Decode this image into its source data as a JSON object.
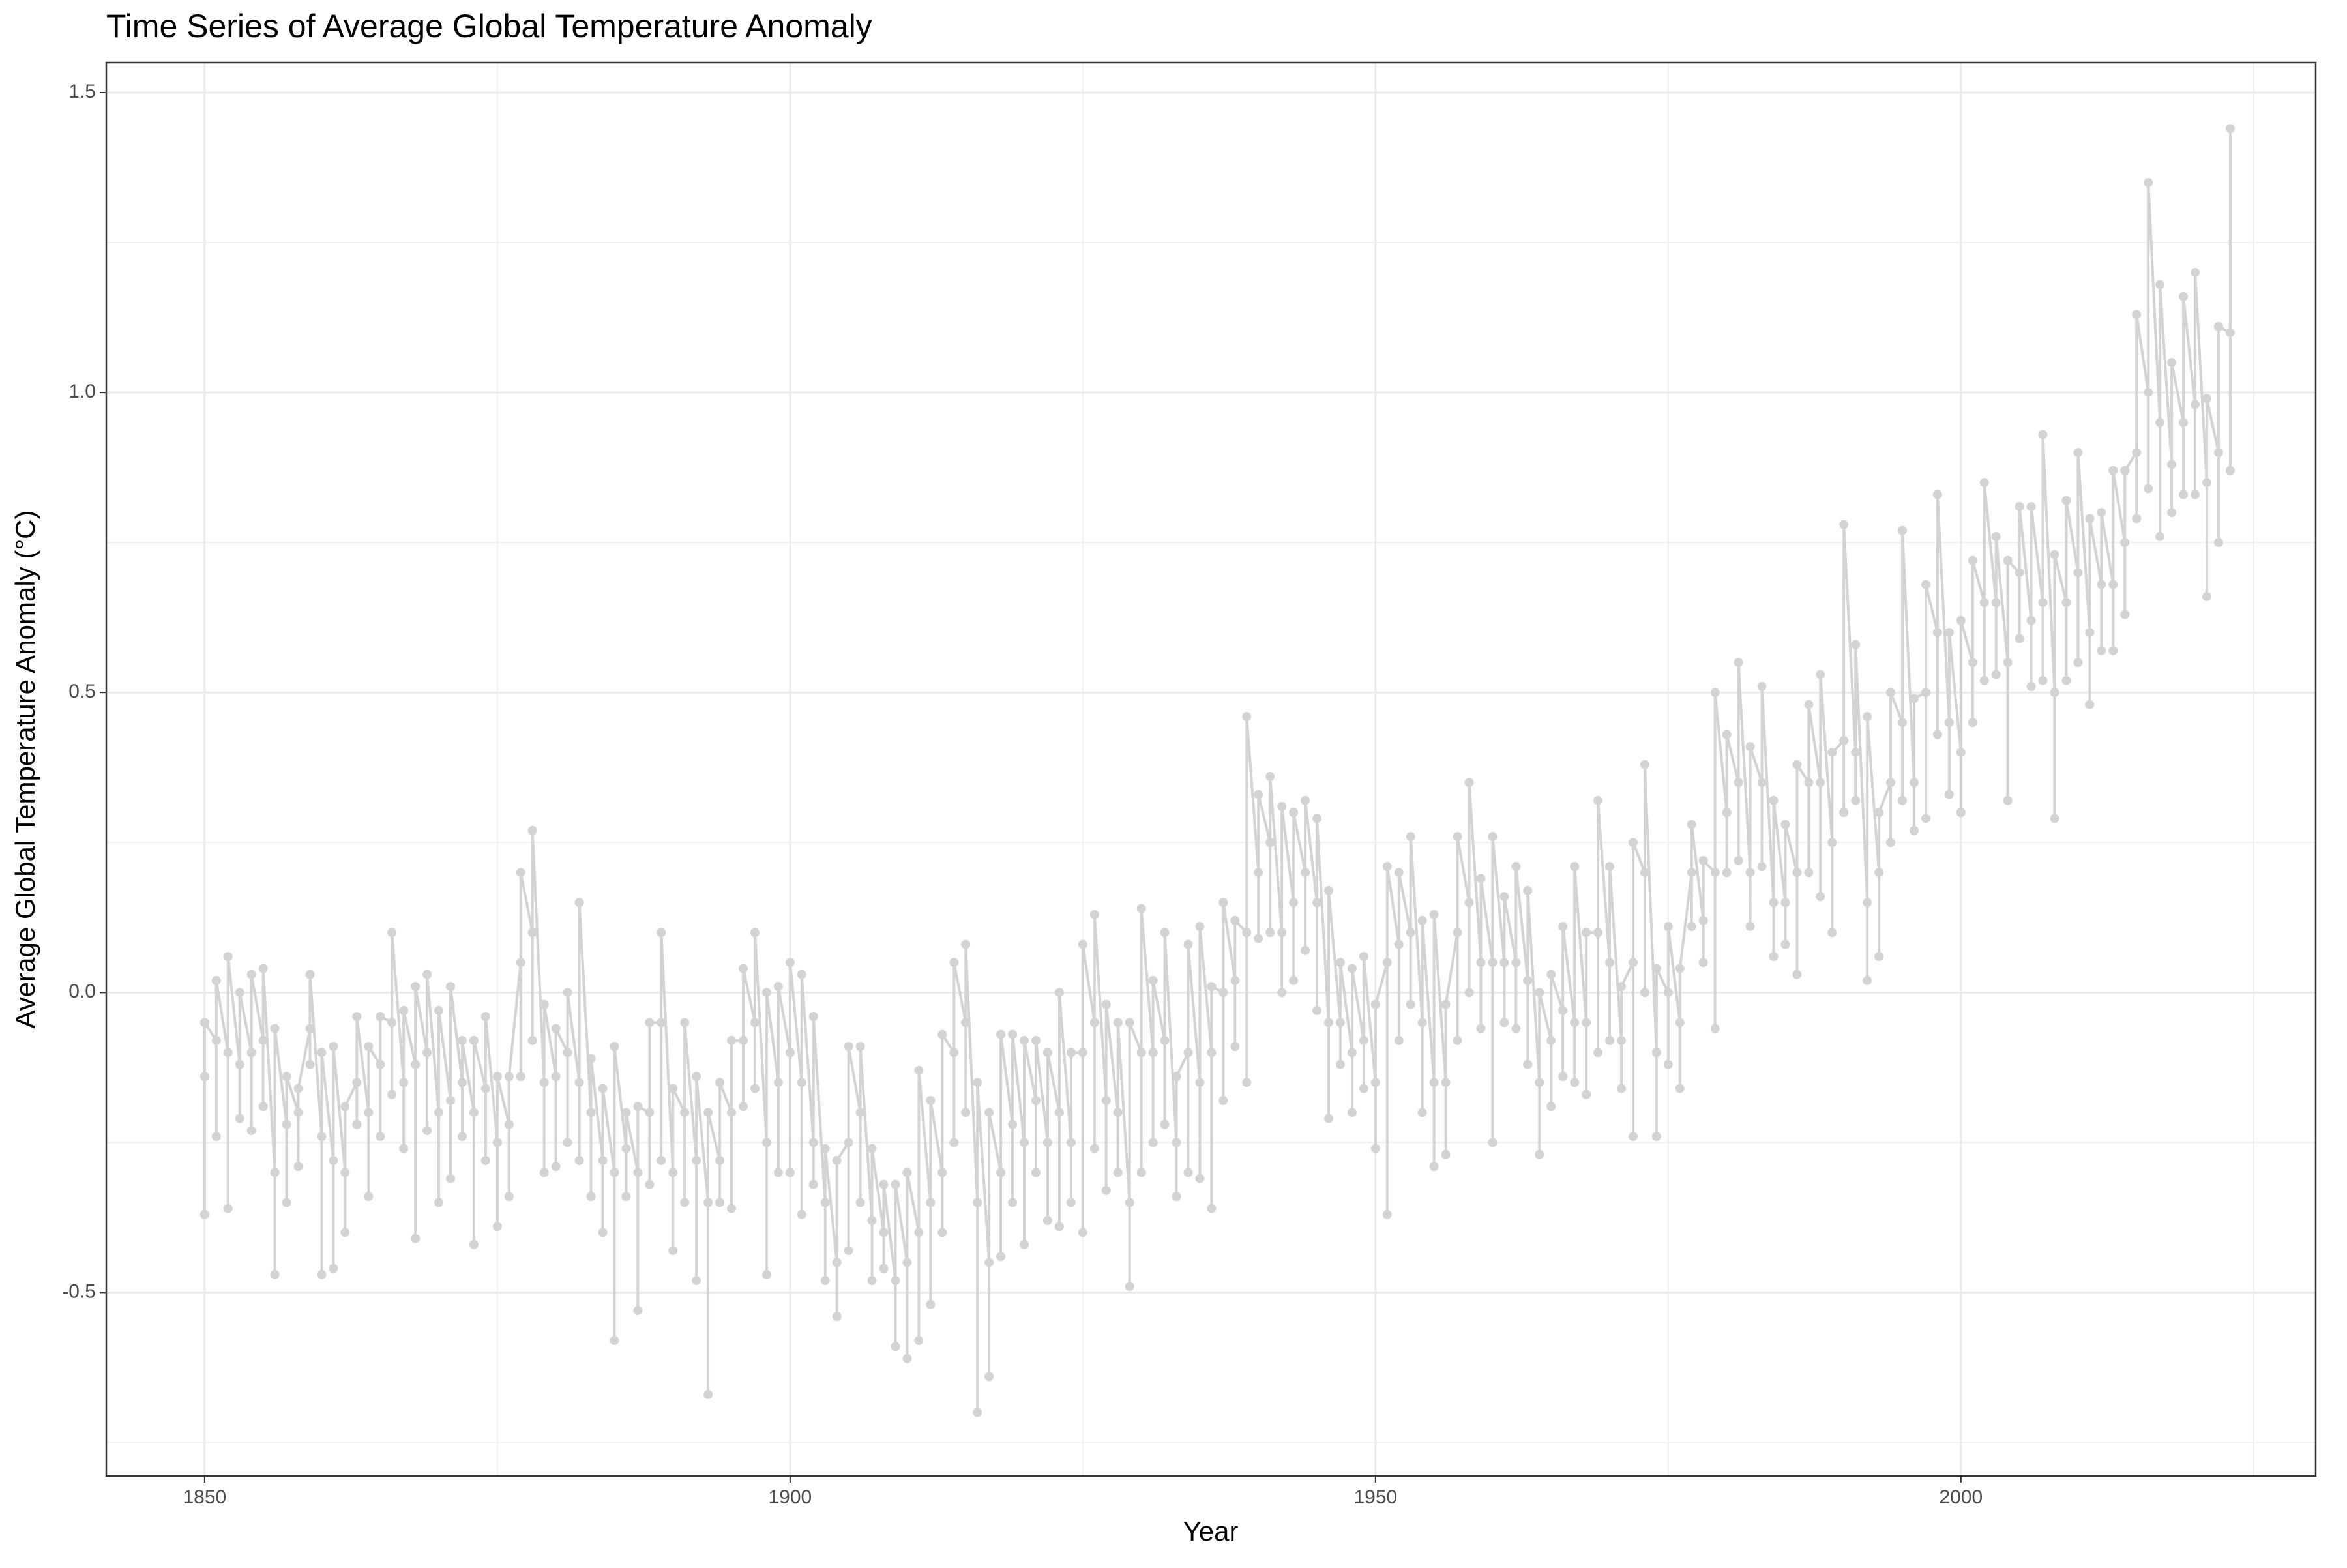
{
  "chart_data": {
    "type": "line",
    "title": "Time Series of Average Global Temperature Anomaly",
    "x_label": "Year",
    "y_label": "Average Global Temperature Anomaly (°C)",
    "color": "#d3d3d3",
    "grid": true,
    "xlim": [
      1841.6,
      2030.3
    ],
    "xticks": [
      1850,
      1900,
      1950,
      2000
    ],
    "ylim": [
      -0.806,
      1.55
    ],
    "yticks": [
      -0.5,
      {
        "value": 0,
        "label": "0.0"
      },
      0.5,
      {
        "value": 1,
        "label": "1.0"
      },
      1.5
    ],
    "x": [
      1850,
      1850,
      1850,
      1851,
      1851,
      1851,
      1852,
      1852,
      1852,
      1853,
      1853,
      1853,
      1854,
      1854,
      1854,
      1855,
      1855,
      1855,
      1856,
      1856,
      1856,
      1857,
      1857,
      1857,
      1858,
      1858,
      1858,
      1859,
      1859,
      1859,
      1860,
      1860,
      1860,
      1861,
      1861,
      1861,
      1862,
      1862,
      1862,
      1863,
      1863,
      1863,
      1864,
      1864,
      1864,
      1865,
      1865,
      1865,
      1866,
      1866,
      1866,
      1867,
      1867,
      1867,
      1868,
      1868,
      1868,
      1869,
      1869,
      1869,
      1870,
      1870,
      1870,
      1871,
      1871,
      1871,
      1872,
      1872,
      1872,
      1873,
      1873,
      1873,
      1874,
      1874,
      1874,
      1875,
      1875,
      1875,
      1876,
      1876,
      1876,
      1877,
      1877,
      1877,
      1878,
      1878,
      1878,
      1879,
      1879,
      1879,
      1880,
      1880,
      1880,
      1881,
      1881,
      1881,
      1882,
      1882,
      1882,
      1883,
      1883,
      1883,
      1884,
      1884,
      1884,
      1885,
      1885,
      1885,
      1886,
      1886,
      1886,
      1887,
      1887,
      1887,
      1888,
      1888,
      1888,
      1889,
      1889,
      1889,
      1890,
      1890,
      1890,
      1891,
      1891,
      1891,
      1892,
      1892,
      1892,
      1893,
      1893,
      1893,
      1894,
      1894,
      1894,
      1895,
      1895,
      1895,
      1896,
      1896,
      1896,
      1897,
      1897,
      1897,
      1898,
      1898,
      1898,
      1899,
      1899,
      1899,
      1900,
      1900,
      1900,
      1901,
      1901,
      1901,
      1902,
      1902,
      1902,
      1903,
      1903,
      1903,
      1904,
      1904,
      1904,
      1905,
      1905,
      1905,
      1906,
      1906,
      1906,
      1907,
      1907,
      1907,
      1908,
      1908,
      1908,
      1909,
      1909,
      1909,
      1910,
      1910,
      1910,
      1911,
      1911,
      1911,
      1912,
      1912,
      1912,
      1913,
      1913,
      1913,
      1914,
      1914,
      1914,
      1915,
      1915,
      1915,
      1916,
      1916,
      1916,
      1917,
      1917,
      1917,
      1918,
      1918,
      1918,
      1919,
      1919,
      1919,
      1920,
      1920,
      1920,
      1921,
      1921,
      1921,
      1922,
      1922,
      1922,
      1923,
      1923,
      1923,
      1924,
      1924,
      1924,
      1925,
      1925,
      1925,
      1926,
      1926,
      1926,
      1927,
      1927,
      1927,
      1928,
      1928,
      1928,
      1929,
      1929,
      1929,
      1930,
      1930,
      1930,
      1931,
      1931,
      1931,
      1932,
      1932,
      1932,
      1933,
      1933,
      1933,
      1934,
      1934,
      1934,
      1935,
      1935,
      1935,
      1936,
      1936,
      1936,
      1937,
      1937,
      1937,
      1938,
      1938,
      1938,
      1939,
      1939,
      1939,
      1940,
      1940,
      1940,
      1941,
      1941,
      1941,
      1942,
      1942,
      1942,
      1943,
      1943,
      1943,
      1944,
      1944,
      1944,
      1945,
      1945,
      1945,
      1946,
      1946,
      1946,
      1947,
      1947,
      1947,
      1948,
      1948,
      1948,
      1949,
      1949,
      1949,
      1950,
      1950,
      1950,
      1951,
      1951,
      1951,
      1952,
      1952,
      1952,
      1953,
      1953,
      1953,
      1954,
      1954,
      1954,
      1955,
      1955,
      1955,
      1956,
      1956,
      1956,
      1957,
      1957,
      1957,
      1958,
      1958,
      1958,
      1959,
      1959,
      1959,
      1960,
      1960,
      1960,
      1961,
      1961,
      1961,
      1962,
      1962,
      1962,
      1963,
      1963,
      1963,
      1964,
      1964,
      1964,
      1965,
      1965,
      1965,
      1966,
      1966,
      1966,
      1967,
      1967,
      1967,
      1968,
      1968,
      1968,
      1969,
      1969,
      1969,
      1970,
      1970,
      1970,
      1971,
      1971,
      1971,
      1972,
      1972,
      1972,
      1973,
      1973,
      1973,
      1974,
      1974,
      1974,
      1975,
      1975,
      1975,
      1976,
      1976,
      1976,
      1977,
      1977,
      1977,
      1978,
      1978,
      1978,
      1979,
      1979,
      1979,
      1980,
      1980,
      1980,
      1981,
      1981,
      1981,
      1982,
      1982,
      1982,
      1983,
      1983,
      1983,
      1984,
      1984,
      1984,
      1985,
      1985,
      1985,
      1986,
      1986,
      1986,
      1987,
      1987,
      1987,
      1988,
      1988,
      1988,
      1989,
      1989,
      1989,
      1990,
      1990,
      1990,
      1991,
      1991,
      1991,
      1992,
      1992,
      1992,
      1993,
      1993,
      1993,
      1994,
      1994,
      1994,
      1995,
      1995,
      1995,
      1996,
      1996,
      1996,
      1997,
      1997,
      1997,
      1998,
      1998,
      1998,
      1999,
      1999,
      1999,
      2000,
      2000,
      2000,
      2001,
      2001,
      2001,
      2002,
      2002,
      2002,
      2003,
      2003,
      2003,
      2004,
      2004,
      2004,
      2005,
      2005,
      2005,
      2006,
      2006,
      2006,
      2007,
      2007,
      2007,
      2008,
      2008,
      2008,
      2009,
      2009,
      2009,
      2010,
      2010,
      2010,
      2011,
      2011,
      2011,
      2012,
      2012,
      2012,
      2013,
      2013,
      2013,
      2014,
      2014,
      2014,
      2015,
      2015,
      2015,
      2016,
      2016,
      2016,
      2017,
      2017,
      2017,
      2018,
      2018,
      2018,
      2019,
      2019,
      2019,
      2020,
      2020,
      2020,
      2021,
      2021,
      2021,
      2022,
      2022,
      2022,
      2023,
      2023,
      2023
    ],
    "values": [
      -0.14,
      -0.37,
      -0.05,
      -0.08,
      -0.24,
      0.02,
      -0.1,
      -0.36,
      0.06,
      -0.12,
      -0.21,
      0,
      -0.1,
      -0.23,
      0.03,
      -0.08,
      -0.19,
      0.04,
      -0.3,
      -0.47,
      -0.06,
      -0.22,
      -0.35,
      -0.14,
      -0.2,
      -0.29,
      -0.16,
      -0.06,
      -0.12,
      0.03,
      -0.24,
      -0.47,
      -0.1,
      -0.28,
      -0.46,
      -0.09,
      -0.3,
      -0.4,
      -0.19,
      -0.15,
      -0.22,
      -0.04,
      -0.2,
      -0.34,
      -0.09,
      -0.12,
      -0.24,
      -0.04,
      -0.05,
      -0.17,
      0.1,
      -0.15,
      -0.26,
      -0.03,
      -0.12,
      -0.41,
      0.01,
      -0.1,
      -0.23,
      0.03,
      -0.2,
      -0.35,
      -0.03,
      -0.18,
      -0.31,
      0.01,
      -0.15,
      -0.24,
      -0.08,
      -0.2,
      -0.42,
      -0.08,
      -0.16,
      -0.28,
      -0.04,
      -0.25,
      -0.39,
      -0.14,
      -0.22,
      -0.34,
      -0.14,
      0.05,
      -0.14,
      0.2,
      0.1,
      -0.08,
      0.27,
      -0.15,
      -0.3,
      -0.02,
      -0.14,
      -0.29,
      -0.06,
      -0.1,
      -0.25,
      0,
      -0.15,
      -0.28,
      0.15,
      -0.2,
      -0.34,
      -0.11,
      -0.28,
      -0.4,
      -0.16,
      -0.3,
      -0.58,
      -0.09,
      -0.26,
      -0.34,
      -0.2,
      -0.3,
      -0.53,
      -0.19,
      -0.2,
      -0.32,
      -0.05,
      -0.05,
      -0.28,
      0.1,
      -0.3,
      -0.43,
      -0.16,
      -0.2,
      -0.35,
      -0.05,
      -0.28,
      -0.48,
      -0.14,
      -0.35,
      -0.67,
      -0.2,
      -0.28,
      -0.35,
      -0.15,
      -0.2,
      -0.36,
      -0.08,
      -0.08,
      -0.19,
      0.04,
      -0.05,
      -0.16,
      0.1,
      -0.25,
      -0.47,
      0,
      -0.15,
      -0.3,
      0.01,
      -0.1,
      -0.3,
      0.05,
      -0.15,
      -0.37,
      0.03,
      -0.25,
      -0.32,
      -0.04,
      -0.35,
      -0.48,
      -0.26,
      -0.45,
      -0.54,
      -0.28,
      -0.25,
      -0.43,
      -0.09,
      -0.2,
      -0.35,
      -0.09,
      -0.38,
      -0.48,
      -0.26,
      -0.4,
      -0.46,
      -0.32,
      -0.48,
      -0.59,
      -0.32,
      -0.45,
      -0.61,
      -0.3,
      -0.4,
      -0.58,
      -0.13,
      -0.35,
      -0.52,
      -0.18,
      -0.3,
      -0.4,
      -0.07,
      -0.1,
      -0.25,
      0.05,
      -0.05,
      -0.2,
      0.08,
      -0.35,
      -0.7,
      -0.15,
      -0.45,
      -0.64,
      -0.2,
      -0.3,
      -0.44,
      -0.07,
      -0.22,
      -0.35,
      -0.07,
      -0.25,
      -0.42,
      -0.08,
      -0.18,
      -0.3,
      -0.08,
      -0.25,
      -0.38,
      -0.1,
      -0.2,
      -0.39,
      0,
      -0.25,
      -0.35,
      -0.1,
      -0.1,
      -0.4,
      0.08,
      -0.05,
      -0.26,
      0.13,
      -0.18,
      -0.33,
      -0.02,
      -0.2,
      -0.3,
      -0.05,
      -0.35,
      -0.49,
      -0.05,
      -0.1,
      -0.3,
      0.14,
      -0.1,
      -0.25,
      0.02,
      -0.08,
      -0.22,
      0.1,
      -0.25,
      -0.34,
      -0.14,
      -0.1,
      -0.3,
      0.08,
      -0.15,
      -0.31,
      0.11,
      -0.1,
      -0.36,
      0.01,
      0,
      -0.18,
      0.15,
      0.02,
      -0.09,
      0.12,
      0.1,
      -0.15,
      0.46,
      0.2,
      0.09,
      0.33,
      0.25,
      0.1,
      0.36,
      0.1,
      0,
      0.31,
      0.15,
      0.02,
      0.3,
      0.2,
      0.07,
      0.32,
      0.15,
      -0.03,
      0.29,
      -0.05,
      -0.21,
      0.17,
      -0.05,
      -0.12,
      0.05,
      -0.1,
      -0.2,
      0.04,
      -0.08,
      -0.16,
      0.06,
      -0.15,
      -0.26,
      -0.02,
      0.05,
      -0.37,
      0.21,
      0.08,
      -0.08,
      0.2,
      0.1,
      -0.02,
      0.26,
      -0.05,
      -0.2,
      0.12,
      -0.15,
      -0.29,
      0.13,
      -0.15,
      -0.27,
      -0.02,
      0.1,
      -0.08,
      0.26,
      0.15,
      0,
      0.35,
      0.05,
      -0.06,
      0.19,
      0.05,
      -0.25,
      0.26,
      0.05,
      -0.05,
      0.16,
      0.05,
      -0.06,
      0.21,
      0.02,
      -0.12,
      0.17,
      -0.15,
      -0.27,
      0,
      -0.08,
      -0.19,
      0.03,
      -0.03,
      -0.14,
      0.11,
      -0.05,
      -0.15,
      0.21,
      -0.05,
      -0.17,
      0.1,
      0.1,
      -0.1,
      0.32,
      0.05,
      -0.08,
      0.21,
      -0.08,
      -0.16,
      0.01,
      0.05,
      -0.24,
      0.25,
      0.2,
      0,
      0.38,
      -0.1,
      -0.24,
      0.04,
      0,
      -0.12,
      0.11,
      -0.05,
      -0.16,
      0.04,
      0.2,
      0.11,
      0.28,
      0.12,
      0.05,
      0.22,
      0.2,
      -0.06,
      0.5,
      0.3,
      0.2,
      0.43,
      0.35,
      0.22,
      0.55,
      0.2,
      0.11,
      0.41,
      0.35,
      0.21,
      0.51,
      0.15,
      0.06,
      0.32,
      0.15,
      0.08,
      0.28,
      0.2,
      0.03,
      0.38,
      0.35,
      0.2,
      0.48,
      0.35,
      0.16,
      0.53,
      0.25,
      0.1,
      0.4,
      0.42,
      0.3,
      0.78,
      0.4,
      0.32,
      0.58,
      0.15,
      0.02,
      0.46,
      0.2,
      0.06,
      0.3,
      0.35,
      0.25,
      0.5,
      0.45,
      0.32,
      0.77,
      0.35,
      0.27,
      0.49,
      0.5,
      0.29,
      0.68,
      0.6,
      0.43,
      0.83,
      0.45,
      0.33,
      0.6,
      0.4,
      0.3,
      0.62,
      0.55,
      0.45,
      0.72,
      0.65,
      0.52,
      0.85,
      0.65,
      0.53,
      0.76,
      0.55,
      0.32,
      0.72,
      0.7,
      0.59,
      0.81,
      0.62,
      0.51,
      0.81,
      0.65,
      0.52,
      0.93,
      0.5,
      0.29,
      0.73,
      0.65,
      0.52,
      0.82,
      0.7,
      0.55,
      0.9,
      0.6,
      0.48,
      0.79,
      0.68,
      0.57,
      0.8,
      0.68,
      0.57,
      0.87,
      0.75,
      0.63,
      0.87,
      0.9,
      0.79,
      1.13,
      1,
      0.84,
      1.35,
      0.95,
      0.76,
      1.18,
      0.88,
      0.8,
      1.05,
      0.95,
      0.83,
      1.16,
      0.98,
      0.83,
      1.2,
      0.85,
      0.66,
      0.99,
      0.9,
      0.75,
      1.11,
      1.1,
      0.87,
      1.44
    ]
  }
}
